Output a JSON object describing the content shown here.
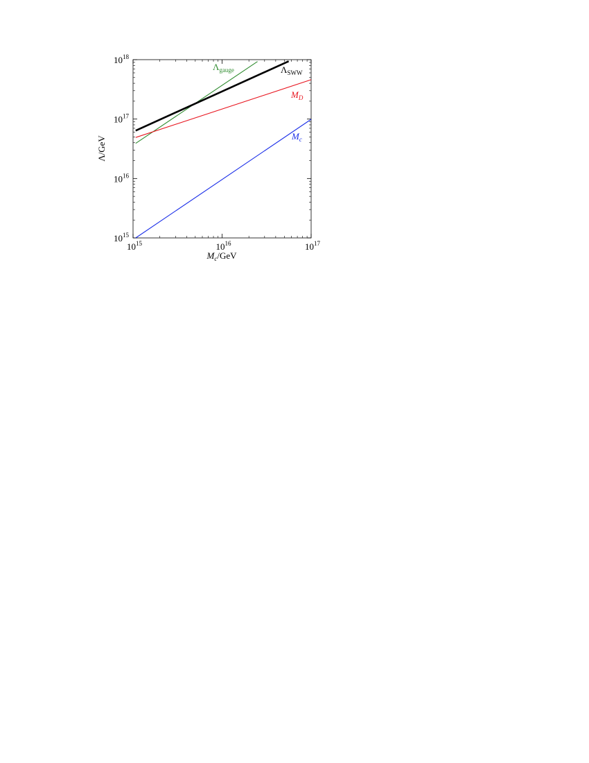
{
  "chart_data": {
    "type": "line",
    "title": "",
    "xlabel": {
      "main": "M",
      "sub": "c",
      "rest": "/GeV"
    },
    "ylabel": "Λ/GeV",
    "x_scale": "log",
    "y_scale": "log",
    "xlim": [
      1000000000000000.0,
      1e+17
    ],
    "ylim": [
      1000000000000000.0,
      1e+18
    ],
    "x_ticks": [
      {
        "value": 1000000000000000.0,
        "base": "10",
        "exp": "15"
      },
      {
        "value": 1e+16,
        "base": "10",
        "exp": "16"
      },
      {
        "value": 1e+17,
        "base": "10",
        "exp": "17"
      }
    ],
    "y_ticks": [
      {
        "value": 1000000000000000.0,
        "base": "10",
        "exp": "15"
      },
      {
        "value": 1e+16,
        "base": "10",
        "exp": "16"
      },
      {
        "value": 1e+17,
        "base": "10",
        "exp": "17"
      },
      {
        "value": 1e+18,
        "base": "10",
        "exp": "18"
      }
    ],
    "grid": false,
    "series": [
      {
        "name": "Λ_gauge",
        "label": {
          "main": "Λ",
          "sub": "gauge"
        },
        "color": "#2e8b2e",
        "thick": false,
        "x": [
          1070000000000000.0,
          2.5e+16
        ],
        "y": [
          3.9e+16,
          9.3e+17
        ]
      },
      {
        "name": "Λ_SWW",
        "label": {
          "main": "Λ",
          "sub": "SWW"
        },
        "color": "#000000",
        "thick": true,
        "x": [
          1070000000000000.0,
          5.6e+16
        ],
        "y": [
          6.4e+16,
          9.4e+17
        ]
      },
      {
        "name": "M_D",
        "label": {
          "main": "M",
          "sub": "D"
        },
        "color": "#e8141e",
        "thick": false,
        "x": [
          1070000000000000.0,
          1e+17
        ],
        "y": [
          4.9e+16,
          4.6e+17
        ]
      },
      {
        "name": "M_c",
        "label": {
          "main": "M",
          "sub": "c"
        },
        "color": "#1a2ee8",
        "thick": false,
        "x": [
          1070000000000000.0,
          1e+17
        ],
        "y": [
          1000000000000000.0,
          9.9e+16
        ]
      }
    ]
  }
}
